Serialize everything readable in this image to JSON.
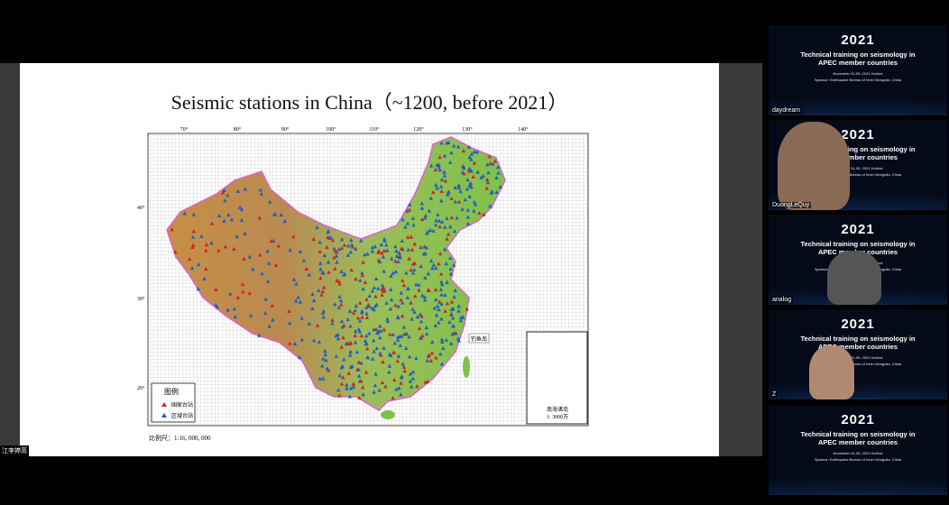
{
  "slide": {
    "title": "Seismic stations in China（~1200, before 2021）",
    "lon_labels": [
      "70°",
      "80°",
      "90°",
      "100°",
      "110°",
      "120°",
      "130°",
      "140°"
    ],
    "lat_labels": [
      "40°",
      "30°",
      "20°"
    ],
    "legend": {
      "title": "图例",
      "items": [
        "国家台站",
        "区域台站"
      ]
    },
    "island_label": "钓鱼岛",
    "inset_label": [
      "南海诸岛",
      "1: 3000万"
    ],
    "scale": "比例尺：1:16, 000, 000"
  },
  "presenter": "江李婷高",
  "tiles": {
    "year": "2021",
    "heading": [
      "Technical training on seismology in",
      "APEC member countries"
    ],
    "sub": [
      "November 01-05, 2021 Hohhot",
      "Sponsor: Earthquake Bureau of Inner Mongolia, China"
    ],
    "names": [
      "daydream",
      "DuongLeQuy",
      "analog",
      "Z"
    ]
  }
}
